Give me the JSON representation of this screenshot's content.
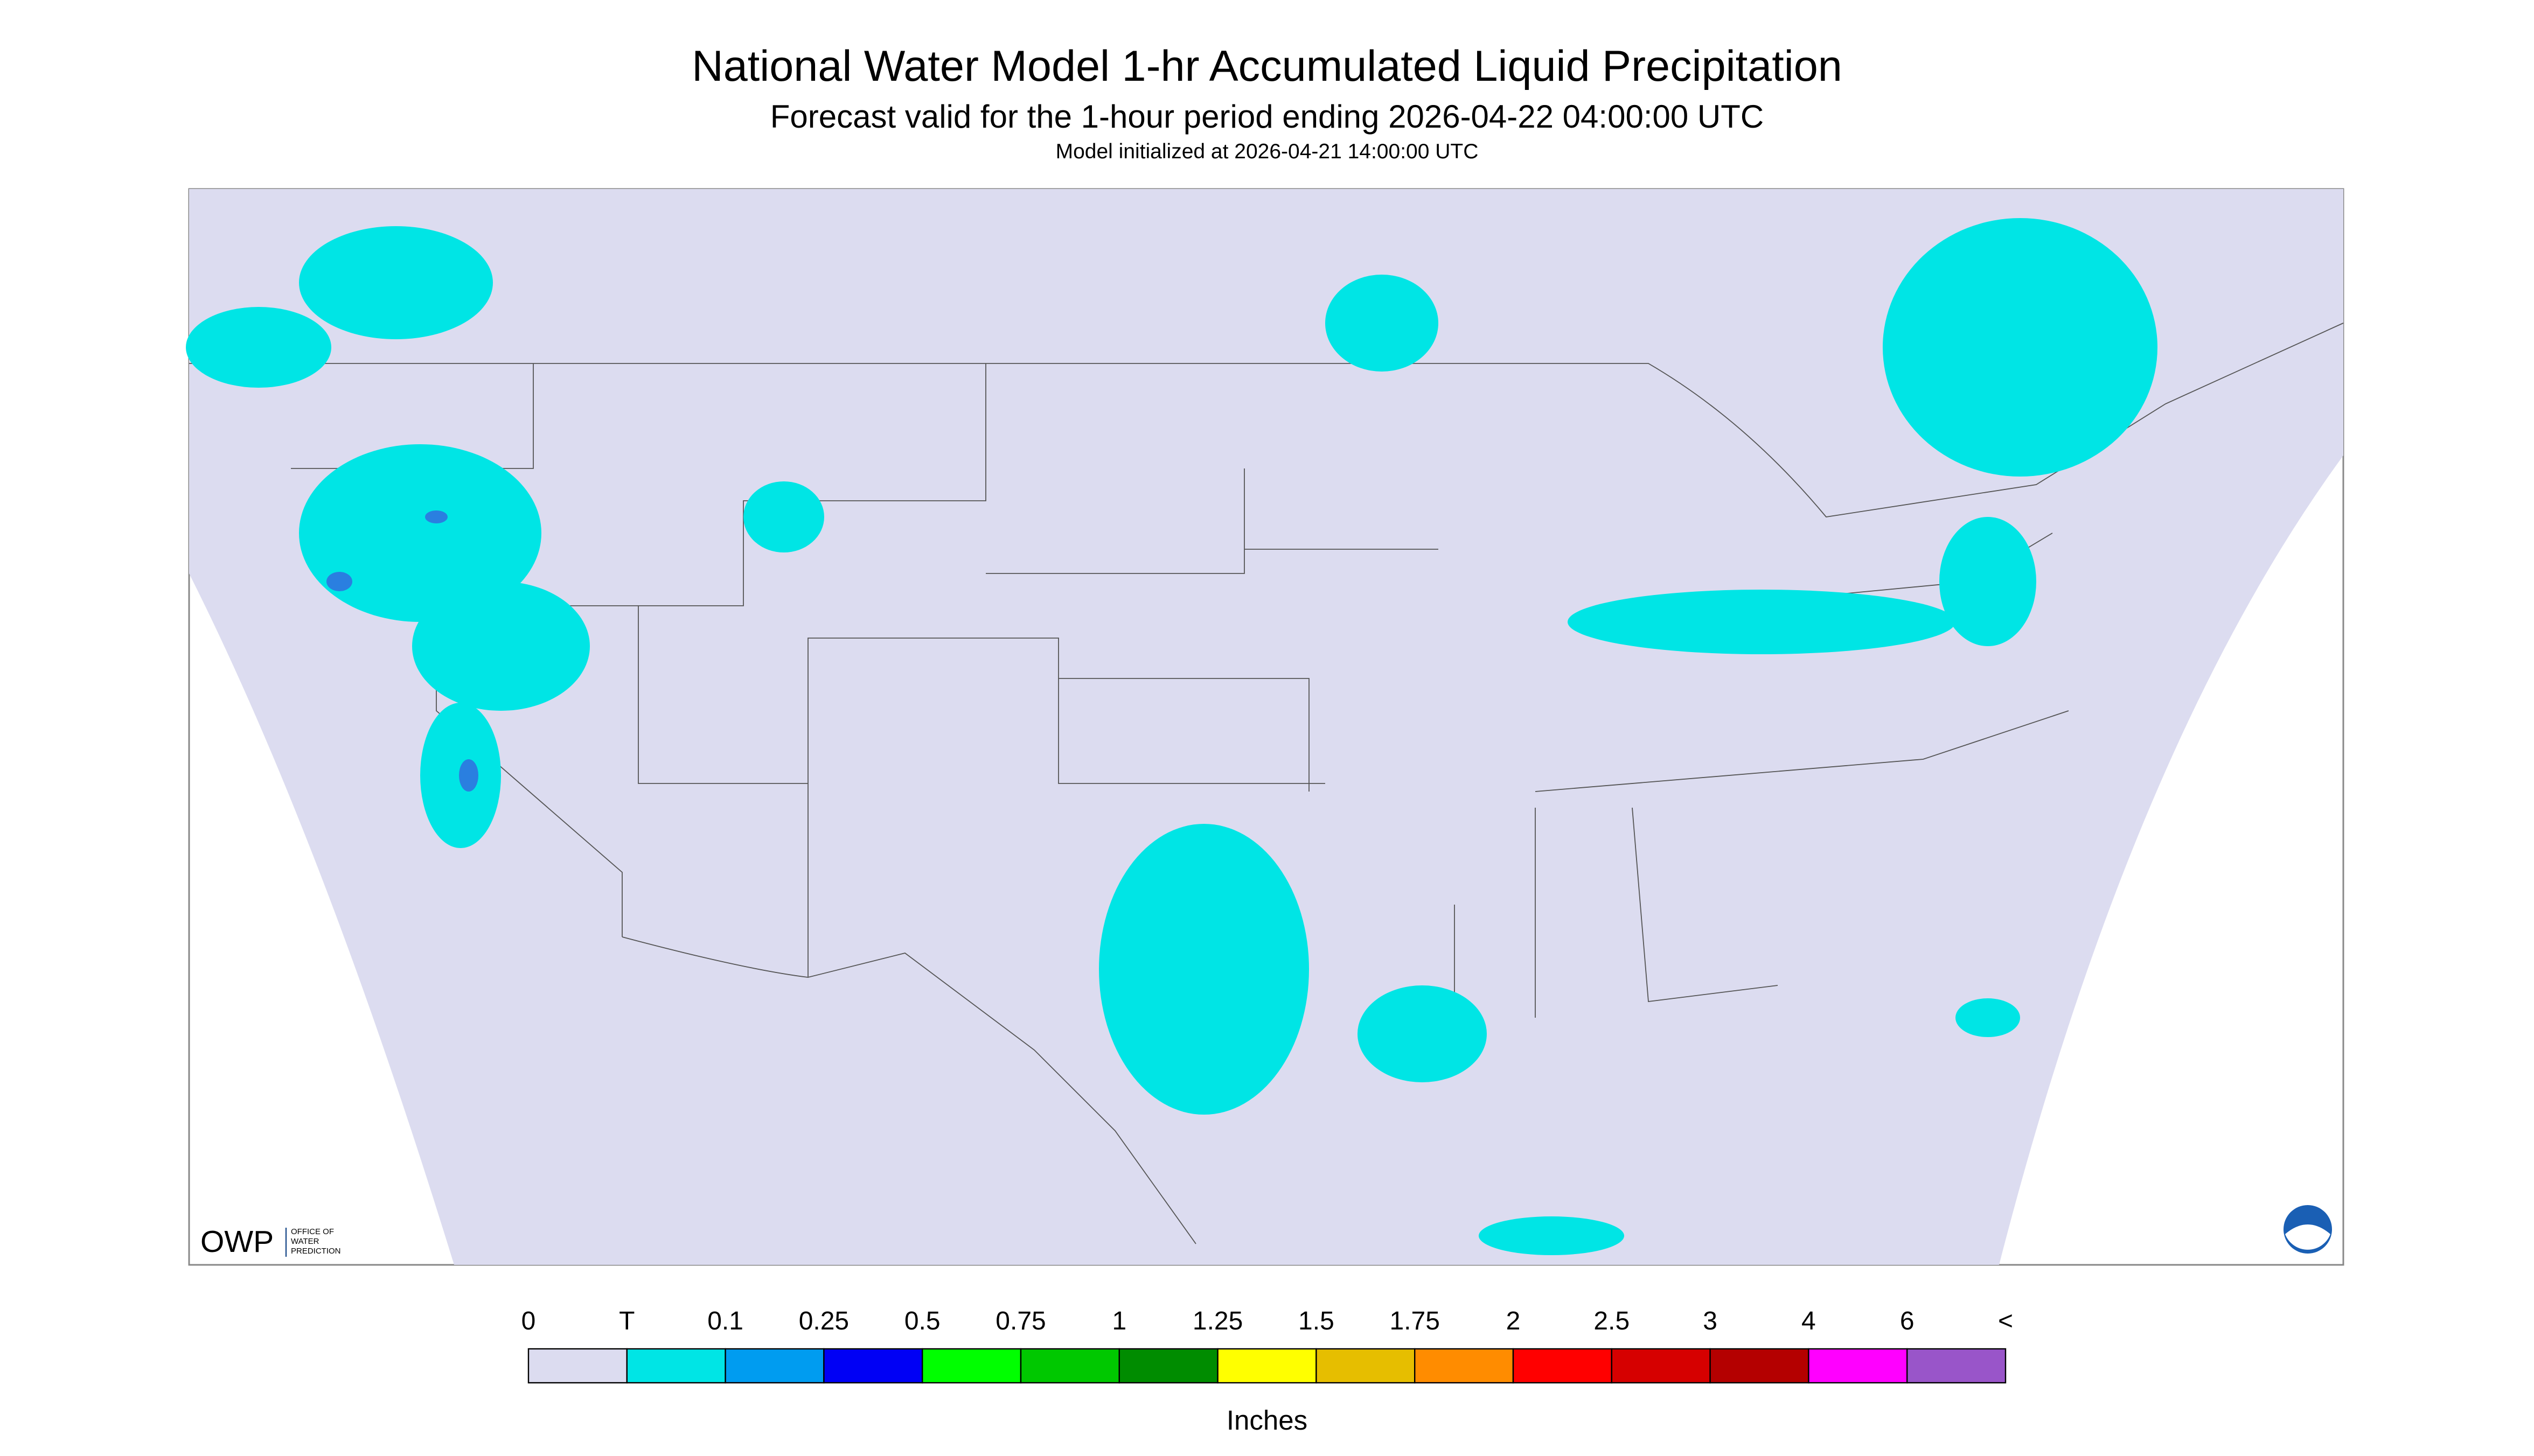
{
  "header": {
    "title": "National Water Model 1-hr Accumulated Liquid Precipitation",
    "subtitle": "Forecast valid for the 1-hour period ending 2026-04-22 04:00:00 UTC",
    "note": "Model initialized at 2026-04-21 14:00:00 UTC"
  },
  "logo": {
    "abbreviation": "OWP",
    "lines": [
      "OFFICE OF",
      "WATER",
      "PREDICTION"
    ]
  },
  "legend": {
    "labels": [
      "0",
      "T",
      "0.1",
      "0.25",
      "0.5",
      "0.75",
      "1",
      "1.25",
      "1.5",
      "1.75",
      "2",
      "2.5",
      "3",
      "4",
      "6",
      "<"
    ],
    "colors": [
      "#dcdcf0",
      "#00e5e5",
      "#009cf0",
      "#0000f5",
      "#00ff00",
      "#00c800",
      "#008c00",
      "#ffff00",
      "#e6be00",
      "#ff8c00",
      "#ff0000",
      "#d60000",
      "#b40000",
      "#ff00ff",
      "#9955c9"
    ],
    "unit": "Inches"
  }
}
